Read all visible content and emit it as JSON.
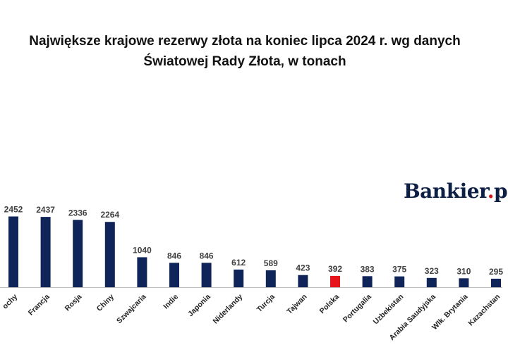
{
  "title_lines": [
    "Największe krajowe rezerwy złota na koniec lipca 2024 r. wg danych",
    "Światowej Rady Złota, w tonach"
  ],
  "logo": {
    "text": "Bankier",
    "dot": ".",
    "suffix": "pl"
  },
  "chart_data": {
    "type": "bar",
    "title": "Największe krajowe rezerwy złota na koniec lipca 2024 r. wg danych Światowej Rady Złota, w tonach",
    "xlabel": "",
    "ylabel": "",
    "categories": [
      "Włochy",
      "Francja",
      "Rosja",
      "Chiny",
      "Szwajcaria",
      "Indie",
      "Japonia",
      "Niderlandy",
      "Turcja",
      "Tajwan",
      "Polska",
      "Portugalia",
      "Uzbekistan",
      "Arabia Saudyjska",
      "Wlk. Brytania",
      "Kazachstan"
    ],
    "category_tick_labels": [
      "ochy",
      "Francja",
      "Rosja",
      "Chiny",
      "Szwajcaria",
      "Indie",
      "Japonia",
      "Niderlandy",
      "Turcja",
      "Tajwan",
      "Polska",
      "Portugalia",
      "Uzbekistan",
      "Arabia Saudyjska",
      "Wlk. Brytania",
      "Kazachstan"
    ],
    "values": [
      2452,
      2437,
      2336,
      2264,
      1040,
      846,
      846,
      612,
      589,
      423,
      392,
      383,
      375,
      323,
      310,
      295
    ],
    "ylim": [
      0,
      2452
    ],
    "grid": false,
    "legend": "none",
    "colors": {
      "default": "#0f2559",
      "highlight": "#e8141c",
      "axis": "#bfbfbf"
    },
    "highlight_category": "Polska"
  }
}
